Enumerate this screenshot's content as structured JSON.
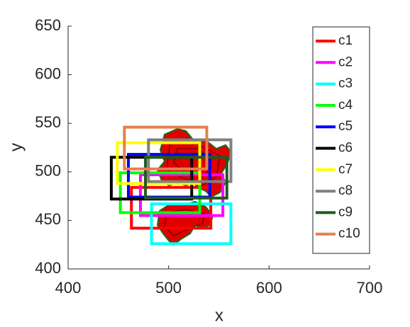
{
  "chart_data": {
    "type": "rect",
    "x_label": "x",
    "y_label": "y",
    "xlim": [
      400,
      700
    ],
    "xticks": [
      400,
      500,
      600,
      700
    ],
    "ylim": [
      400,
      650
    ],
    "yticks": [
      400,
      450,
      500,
      550,
      600,
      650
    ],
    "legend": "top-right",
    "series": [
      {
        "name": "c1",
        "color": "#ff0000",
        "x": [
          463,
          542
        ],
        "values": [
          442,
          484
        ]
      },
      {
        "name": "c2",
        "color": "#ff00ff",
        "x": [
          472,
          554
        ],
        "values": [
          455,
          497
        ]
      },
      {
        "name": "c3",
        "color": "#00ffff",
        "x": [
          483,
          562
        ],
        "values": [
          426,
          467
        ]
      },
      {
        "name": "c4",
        "color": "#00ff00",
        "x": [
          452,
          531
        ],
        "values": [
          458,
          499
        ]
      },
      {
        "name": "c5",
        "color": "#0000ff",
        "x": [
          460,
          541
        ],
        "values": [
          474,
          518
        ]
      },
      {
        "name": "c6",
        "color": "#000000",
        "x": [
          443,
          523
        ],
        "values": [
          472,
          515
        ]
      },
      {
        "name": "c7",
        "color": "#ffff00",
        "x": [
          449,
          531
        ],
        "values": [
          488,
          530
        ]
      },
      {
        "name": "c8",
        "color": "#808080",
        "x": [
          480,
          562
        ],
        "values": [
          490,
          533
        ]
      },
      {
        "name": "c9",
        "color": "#1e5a1e",
        "x": [
          477,
          558
        ],
        "values": [
          473,
          515
        ]
      },
      {
        "name": "c10",
        "color": "#e5804d",
        "x": [
          456,
          538
        ],
        "values": [
          503,
          546
        ]
      }
    ]
  }
}
